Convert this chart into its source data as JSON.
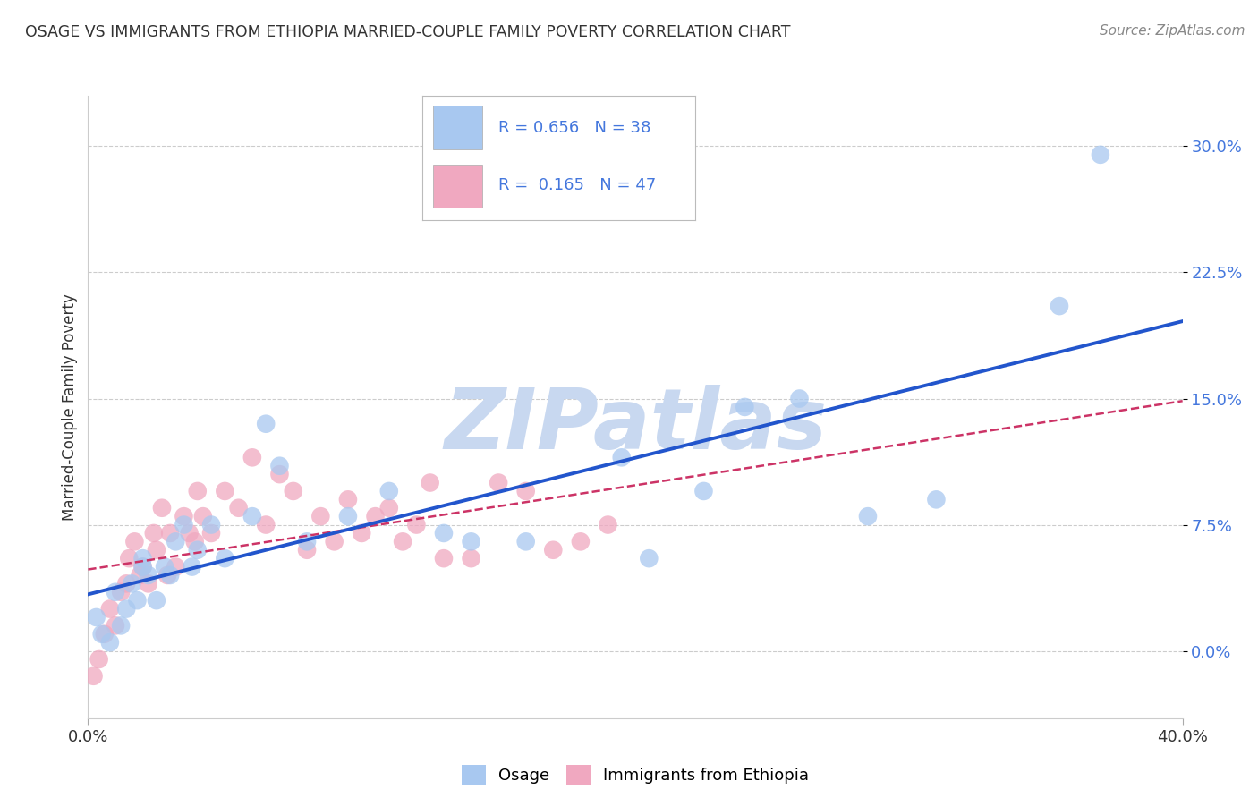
{
  "title": "OSAGE VS IMMIGRANTS FROM ETHIOPIA MARRIED-COUPLE FAMILY POVERTY CORRELATION CHART",
  "source": "Source: ZipAtlas.com",
  "ylabel": "Married-Couple Family Poverty",
  "xlim": [
    0.0,
    40.0
  ],
  "ylim": [
    -4.0,
    33.0
  ],
  "yticks": [
    0.0,
    7.5,
    15.0,
    22.5,
    30.0
  ],
  "xticks": [
    0.0,
    40.0
  ],
  "xtick_labels": [
    "0.0%",
    "40.0%"
  ],
  "ytick_labels": [
    "0.0%",
    "7.5%",
    "15.0%",
    "22.5%",
    "30.0%"
  ],
  "series1_label": "Osage",
  "series2_label": "Immigrants from Ethiopia",
  "series1_color": "#a8c8f0",
  "series2_color": "#f0a8c0",
  "series1_R": 0.656,
  "series1_N": 38,
  "series2_R": 0.165,
  "series2_N": 47,
  "series1_line_color": "#2255cc",
  "series2_line_color": "#cc3366",
  "watermark": "ZIPatlas",
  "watermark_color": "#c8d8f0",
  "background_color": "#ffffff",
  "grid_color": "#cccccc",
  "series1_x": [
    0.3,
    0.5,
    0.8,
    1.0,
    1.2,
    1.4,
    1.6,
    1.8,
    2.0,
    2.2,
    2.5,
    2.8,
    3.0,
    3.2,
    3.5,
    4.0,
    4.5,
    5.0,
    6.0,
    6.5,
    7.0,
    8.0,
    9.5,
    11.0,
    13.0,
    14.0,
    16.0,
    19.5,
    20.5,
    22.5,
    24.0,
    26.0,
    28.5,
    31.0,
    35.5,
    37.0,
    2.0,
    3.8
  ],
  "series1_y": [
    2.0,
    1.0,
    0.5,
    3.5,
    1.5,
    2.5,
    4.0,
    3.0,
    5.5,
    4.5,
    3.0,
    5.0,
    4.5,
    6.5,
    7.5,
    6.0,
    7.5,
    5.5,
    8.0,
    13.5,
    11.0,
    6.5,
    8.0,
    9.5,
    7.0,
    6.5,
    6.5,
    11.5,
    5.5,
    9.5,
    14.5,
    15.0,
    8.0,
    9.0,
    20.5,
    29.5,
    5.0,
    5.0
  ],
  "series2_x": [
    0.2,
    0.4,
    0.6,
    0.8,
    1.0,
    1.2,
    1.4,
    1.5,
    1.7,
    1.9,
    2.0,
    2.2,
    2.4,
    2.5,
    2.7,
    2.9,
    3.0,
    3.2,
    3.5,
    3.7,
    3.9,
    4.0,
    4.2,
    4.5,
    5.0,
    5.5,
    6.0,
    6.5,
    7.0,
    7.5,
    8.0,
    8.5,
    9.0,
    9.5,
    10.0,
    10.5,
    11.0,
    11.5,
    12.0,
    12.5,
    13.0,
    14.0,
    15.0,
    16.0,
    17.0,
    18.0,
    19.0
  ],
  "series2_y": [
    -1.5,
    -0.5,
    1.0,
    2.5,
    1.5,
    3.5,
    4.0,
    5.5,
    6.5,
    4.5,
    5.0,
    4.0,
    7.0,
    6.0,
    8.5,
    4.5,
    7.0,
    5.0,
    8.0,
    7.0,
    6.5,
    9.5,
    8.0,
    7.0,
    9.5,
    8.5,
    11.5,
    7.5,
    10.5,
    9.5,
    6.0,
    8.0,
    6.5,
    9.0,
    7.0,
    8.0,
    8.5,
    6.5,
    7.5,
    10.0,
    5.5,
    5.5,
    10.0,
    9.5,
    6.0,
    6.5,
    7.5
  ]
}
